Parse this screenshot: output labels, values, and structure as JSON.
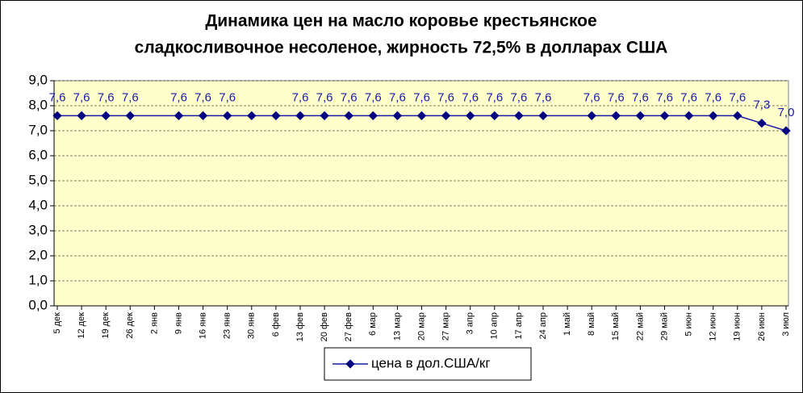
{
  "chart_data": {
    "type": "line",
    "title": [
      "Динамика цен на масло коровье крестьянское",
      "сладкосливочное несоленое, жирность 72,5%  в долларах США"
    ],
    "categories": [
      "5 дек",
      "12 дек",
      "19 дек",
      "26 дек",
      "2 янв",
      "9 янв",
      "16 янв",
      "23 янв",
      "30 янв",
      "6 фев",
      "13 фев",
      "20 фев",
      "27 фев",
      "6 мар",
      "13 мар",
      "20 мар",
      "27 мар",
      "3 апр",
      "10 апр",
      "17 апр",
      "24 апр",
      "1 май",
      "8 май",
      "15 май",
      "22 май",
      "29 май",
      "5 июн",
      "12 июн",
      "19 июн",
      "26 июн",
      "3 июл"
    ],
    "series": [
      {
        "name": "цена в дол.США/кг",
        "color": "#1a1aa6",
        "values": [
          7.6,
          7.6,
          7.6,
          7.6,
          null,
          7.6,
          7.6,
          7.6,
          7.6,
          7.6,
          7.6,
          7.6,
          7.6,
          7.6,
          7.6,
          7.6,
          7.6,
          7.6,
          7.6,
          7.6,
          7.6,
          null,
          7.6,
          7.6,
          7.6,
          7.6,
          7.6,
          7.6,
          7.6,
          7.3,
          7.0
        ],
        "value_labels": [
          "7,6",
          "7,6",
          "7,6",
          "7,6",
          null,
          "7,6",
          "7,6",
          "7,6",
          null,
          null,
          "7,6",
          "7,6",
          "7,6",
          "7,6",
          "7,6",
          "7,6",
          "7,6",
          "7,6",
          "7,6",
          "7,6",
          "7,6",
          null,
          "7,6",
          "7,6",
          "7,6",
          "7,6",
          "7,6",
          "7,6",
          "7,6",
          "7,3",
          "7,0"
        ]
      }
    ],
    "ylim": [
      0,
      9
    ],
    "yticks": [
      {
        "value": 0,
        "label": "0,0"
      },
      {
        "value": 1,
        "label": "1,0"
      },
      {
        "value": 2,
        "label": "2,0"
      },
      {
        "value": 3,
        "label": "3,0"
      },
      {
        "value": 4,
        "label": "4,0"
      },
      {
        "value": 5,
        "label": "5,0"
      },
      {
        "value": 6,
        "label": "6,0"
      },
      {
        "value": 7,
        "label": "7,0"
      },
      {
        "value": 8,
        "label": "8,0"
      },
      {
        "value": 9,
        "label": "9,0"
      }
    ],
    "grid": true,
    "plot_background": "#ffffcc",
    "legend": "bottom"
  }
}
